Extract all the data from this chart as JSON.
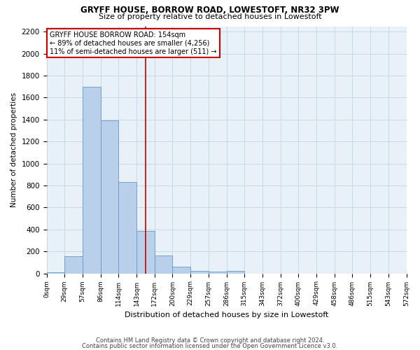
{
  "title1": "GRYFF HOUSE, BORROW ROAD, LOWESTOFT, NR32 3PW",
  "title2": "Size of property relative to detached houses in Lowestoft",
  "xlabel": "Distribution of detached houses by size in Lowestoft",
  "ylabel": "Number of detached properties",
  "bar_values": [
    10,
    155,
    1700,
    1390,
    835,
    385,
    160,
    60,
    20,
    15,
    20,
    0,
    0,
    0,
    0,
    0,
    0,
    0,
    0,
    0
  ],
  "bar_labels": [
    "0sqm",
    "29sqm",
    "57sqm",
    "86sqm",
    "114sqm",
    "143sqm",
    "172sqm",
    "200sqm",
    "229sqm",
    "257sqm",
    "286sqm",
    "315sqm",
    "343sqm",
    "372sqm",
    "400sqm",
    "429sqm",
    "458sqm",
    "486sqm",
    "515sqm",
    "543sqm",
    "572sqm"
  ],
  "bar_color": "#b8d0ea",
  "bar_edge_color": "#6699cc",
  "vline_color": "#cc0000",
  "ylim": [
    0,
    2250
  ],
  "yticks": [
    0,
    200,
    400,
    600,
    800,
    1000,
    1200,
    1400,
    1600,
    1800,
    2000,
    2200
  ],
  "annotation_lines": [
    "GRYFF HOUSE BORROW ROAD: 154sqm",
    "← 89% of detached houses are smaller (4,256)",
    "11% of semi-detached houses are larger (511) →"
  ],
  "annotation_box_color": "#cc0000",
  "footer1": "Contains HM Land Registry data © Crown copyright and database right 2024.",
  "footer2": "Contains public sector information licensed under the Open Government Licence v3.0.",
  "grid_color": "#c8d8e8",
  "bg_color": "#e8f0f8"
}
